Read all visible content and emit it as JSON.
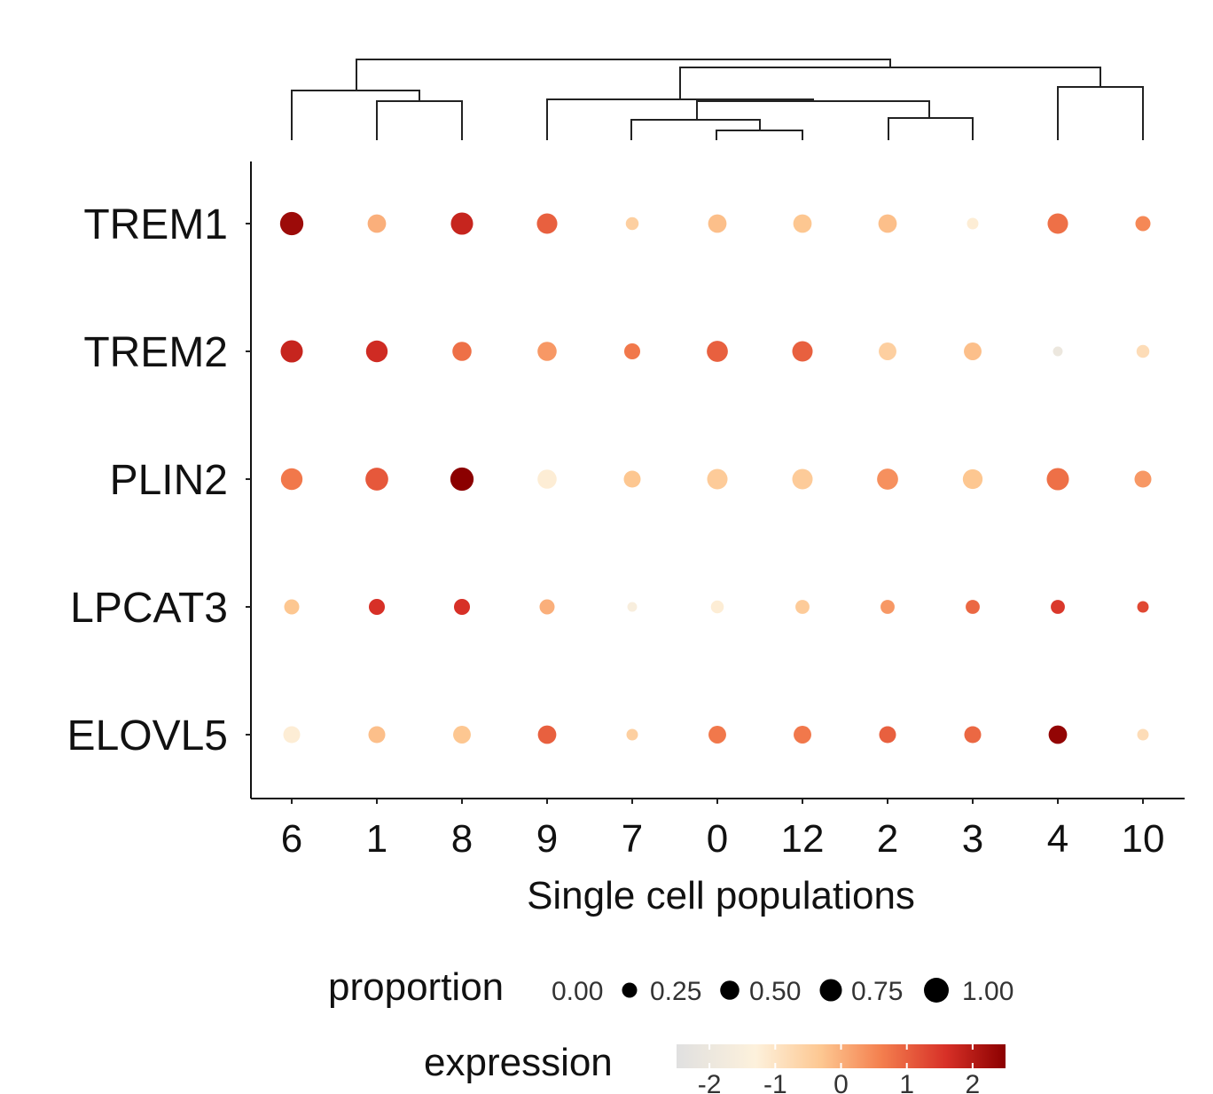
{
  "chart_data": {
    "type": "dotplot",
    "title": "",
    "xlabel": "Single cell populations",
    "ylabel": "",
    "categories": [
      "6",
      "1",
      "8",
      "9",
      "7",
      "0",
      "12",
      "2",
      "3",
      "4",
      "10"
    ],
    "genes": [
      "TREM1",
      "TREM2",
      "PLIN2",
      "LPCAT3",
      "ELOVL5"
    ],
    "series": [
      {
        "name": "TREM1",
        "proportion": [
          0.85,
          0.45,
          0.75,
          0.6,
          0.15,
          0.45,
          0.45,
          0.45,
          0.1,
          0.6,
          0.25
        ],
        "expression": [
          2.3,
          0.0,
          1.8,
          1.0,
          -0.5,
          -0.2,
          -0.3,
          -0.2,
          -1.2,
          0.8,
          0.5
        ]
      },
      {
        "name": "TREM2",
        "proportion": [
          0.75,
          0.7,
          0.5,
          0.5,
          0.3,
          0.65,
          0.6,
          0.4,
          0.4,
          0.05,
          0.15
        ],
        "expression": [
          1.8,
          1.7,
          0.8,
          0.3,
          0.7,
          1.0,
          1.0,
          -0.5,
          -0.2,
          -2.0,
          -0.8
        ]
      },
      {
        "name": "PLIN2",
        "proportion": [
          0.7,
          0.8,
          0.85,
          0.5,
          0.35,
          0.6,
          0.6,
          0.65,
          0.55,
          0.75,
          0.35
        ],
        "expression": [
          0.7,
          1.1,
          2.7,
          -1.2,
          -0.3,
          -0.4,
          -0.4,
          0.4,
          -0.3,
          0.8,
          0.3
        ]
      },
      {
        "name": "LPCAT3",
        "proportion": [
          0.25,
          0.3,
          0.3,
          0.25,
          0.05,
          0.15,
          0.2,
          0.2,
          0.2,
          0.2,
          0.1
        ],
        "expression": [
          -0.3,
          1.6,
          1.6,
          0.0,
          -1.5,
          -1.2,
          -0.4,
          0.3,
          0.9,
          1.5,
          1.3
        ]
      },
      {
        "name": "ELOVL5",
        "proportion": [
          0.35,
          0.35,
          0.4,
          0.45,
          0.1,
          0.4,
          0.4,
          0.35,
          0.35,
          0.45,
          0.1
        ],
        "expression": [
          -1.2,
          -0.2,
          -0.3,
          1.0,
          -0.5,
          0.7,
          0.7,
          1.0,
          0.9,
          2.4,
          -0.8
        ]
      }
    ],
    "size_legend": {
      "title": "proportion",
      "values": [
        0.0,
        0.25,
        0.5,
        0.75,
        1.0
      ],
      "labels": [
        "0.00",
        "0.25",
        "0.50",
        "0.75",
        "1.00"
      ]
    },
    "color_legend": {
      "title": "expression",
      "range": [
        -2.5,
        2.5
      ],
      "ticks": [
        "-2",
        "-1",
        "0",
        "1",
        "2"
      ],
      "tick_values": [
        -2,
        -1,
        0,
        1,
        2
      ],
      "stops": [
        {
          "value": -2.5,
          "color": "#e0e0e0"
        },
        {
          "value": -1.3,
          "color": "#fdf1dc"
        },
        {
          "value": -0.3,
          "color": "#fdc791"
        },
        {
          "value": 0.6,
          "color": "#f4804f"
        },
        {
          "value": 1.6,
          "color": "#d73027"
        },
        {
          "value": 2.5,
          "color": "#8b0000"
        }
      ]
    }
  }
}
